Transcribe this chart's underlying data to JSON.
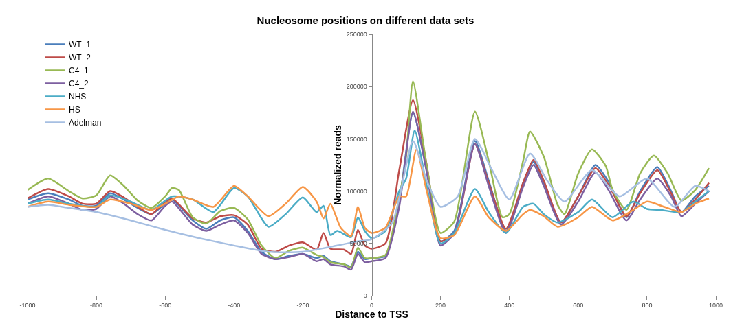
{
  "chart_data": {
    "type": "line",
    "title": "Nucleosome positions on different data sets",
    "xlabel": "Distance to TSS",
    "ylabel": "Normalized reads",
    "xlim": [
      -1000,
      1000
    ],
    "xticks": [
      -1000,
      -800,
      -600,
      -400,
      -200,
      0,
      200,
      400,
      600,
      800,
      1000
    ],
    "ylim": [
      0,
      250000
    ],
    "yticks": [
      0,
      50000,
      100000,
      150000,
      200000,
      250000
    ],
    "legend": "top left",
    "marker": "none",
    "line_style": "solid",
    "series": [
      {
        "name": "WT_1",
        "color": "#4a7ebb",
        "x": [
          -1000,
          -940,
          -880,
          -840,
          -800,
          -760,
          -720,
          -680,
          -640,
          -600,
          -580,
          -520,
          -480,
          -440,
          -400,
          -360,
          -320,
          -280,
          -240,
          -200,
          -160,
          -140,
          -120,
          -80,
          -60,
          -40,
          -20,
          0,
          40,
          80,
          120,
          160,
          200,
          240,
          300,
          340,
          390,
          440,
          470,
          500,
          550,
          600,
          650,
          690,
          740,
          780,
          830,
          870,
          900,
          940,
          980
        ],
        "values": [
          92000,
          98000,
          92000,
          86000,
          86000,
          98000,
          92000,
          84000,
          78000,
          88000,
          92000,
          72000,
          64000,
          72000,
          75000,
          62000,
          42000,
          35000,
          38000,
          40000,
          36000,
          38000,
          33000,
          30000,
          28000,
          42000,
          35000,
          36000,
          38000,
          90000,
          175000,
          120000,
          52000,
          62000,
          148000,
          110000,
          62000,
          108000,
          128000,
          108000,
          70000,
          95000,
          125000,
          108000,
          75000,
          100000,
          123000,
          100000,
          80000,
          95000,
          105000
        ]
      },
      {
        "name": "WT_2",
        "color": "#be4b48",
        "x": [
          -1000,
          -940,
          -880,
          -840,
          -800,
          -760,
          -720,
          -680,
          -640,
          -600,
          -580,
          -520,
          -480,
          -440,
          -400,
          -360,
          -320,
          -280,
          -240,
          -200,
          -160,
          -140,
          -120,
          -80,
          -60,
          -40,
          -20,
          0,
          40,
          80,
          120,
          160,
          200,
          240,
          300,
          340,
          390,
          440,
          470,
          500,
          550,
          600,
          650,
          690,
          740,
          780,
          830,
          870,
          900,
          940,
          980
        ],
        "values": [
          93000,
          102000,
          95000,
          88000,
          88000,
          100000,
          94000,
          85000,
          78000,
          90000,
          93000,
          74000,
          70000,
          76000,
          77000,
          68000,
          45000,
          42000,
          48000,
          51000,
          44000,
          60000,
          45000,
          44000,
          40000,
          63000,
          48000,
          45000,
          50000,
          120000,
          187000,
          125000,
          52000,
          60000,
          145000,
          108000,
          64000,
          108000,
          130000,
          110000,
          70000,
          95000,
          122000,
          105000,
          76000,
          98000,
          120000,
          98000,
          80000,
          92000,
          108000
        ]
      },
      {
        "name": "C4_1",
        "color": "#98b954",
        "x": [
          -1000,
          -940,
          -880,
          -840,
          -800,
          -760,
          -720,
          -680,
          -640,
          -600,
          -580,
          -560,
          -520,
          -480,
          -440,
          -400,
          -360,
          -320,
          -280,
          -240,
          -200,
          -160,
          -140,
          -120,
          -80,
          -60,
          -40,
          -20,
          0,
          40,
          80,
          100,
          120,
          160,
          200,
          240,
          300,
          340,
          380,
          400,
          440,
          460,
          500,
          540,
          560,
          600,
          640,
          680,
          700,
          740,
          780,
          820,
          860,
          900,
          940,
          980
        ],
        "values": [
          101000,
          112000,
          100000,
          93000,
          96000,
          115000,
          105000,
          91000,
          84000,
          95000,
          103000,
          101000,
          75000,
          69000,
          81000,
          84000,
          73000,
          48000,
          36000,
          43000,
          46000,
          39000,
          37000,
          32000,
          30000,
          27000,
          46000,
          36000,
          36000,
          39000,
          94000,
          133000,
          205000,
          124000,
          60000,
          71000,
          176000,
          129000,
          75000,
          78000,
          129000,
          157000,
          133000,
          87000,
          78000,
          117000,
          140000,
          124000,
          101000,
          82000,
          117000,
          134000,
          117000,
          91000,
          101000,
          122000
        ]
      },
      {
        "name": "C4_2",
        "color": "#7d5fa0",
        "x": [
          -1000,
          -940,
          -880,
          -840,
          -800,
          -760,
          -720,
          -680,
          -640,
          -600,
          -580,
          -520,
          -480,
          -440,
          -400,
          -360,
          -320,
          -280,
          -240,
          -200,
          -160,
          -140,
          -120,
          -80,
          -60,
          -40,
          -20,
          0,
          40,
          80,
          120,
          160,
          200,
          240,
          300,
          340,
          390,
          440,
          470,
          500,
          550,
          600,
          650,
          690,
          740,
          780,
          830,
          870,
          900,
          940,
          980
        ],
        "values": [
          88000,
          95000,
          88000,
          82000,
          83000,
          95000,
          88000,
          78000,
          72000,
          86000,
          90000,
          68000,
          62000,
          68000,
          72000,
          60000,
          40000,
          35000,
          37000,
          40000,
          33000,
          35000,
          30000,
          28000,
          25000,
          40000,
          32000,
          33000,
          36000,
          85000,
          176000,
          118000,
          48000,
          60000,
          145000,
          105000,
          60000,
          104000,
          125000,
          105000,
          68000,
          90000,
          118000,
          100000,
          72000,
          92000,
          112000,
          95000,
          76000,
          88000,
          100000
        ]
      },
      {
        "name": "NHS",
        "color": "#4bacc6",
        "x": [
          -1000,
          -940,
          -880,
          -800,
          -760,
          -700,
          -640,
          -580,
          -520,
          -460,
          -400,
          -360,
          -300,
          -250,
          -200,
          -160,
          -140,
          -120,
          -100,
          -60,
          -40,
          -20,
          0,
          40,
          80,
          100,
          125,
          160,
          200,
          240,
          300,
          340,
          390,
          440,
          470,
          500,
          540,
          600,
          640,
          700,
          760,
          800,
          840,
          900,
          940,
          980
        ],
        "values": [
          88000,
          92000,
          88000,
          85000,
          96000,
          90000,
          82000,
          95000,
          92000,
          80000,
          103000,
          95000,
          66000,
          78000,
          94000,
          80000,
          86000,
          58000,
          62000,
          56000,
          75000,
          62000,
          55000,
          62000,
          100000,
          112000,
          158000,
          105000,
          50000,
          60000,
          102000,
          80000,
          60000,
          85000,
          88000,
          78000,
          70000,
          80000,
          92000,
          75000,
          90000,
          83000,
          82000,
          80000,
          90000,
          100000
        ]
      },
      {
        "name": "HS",
        "color": "#f79646",
        "x": [
          -1000,
          -940,
          -880,
          -800,
          -760,
          -700,
          -640,
          -600,
          -560,
          -520,
          -460,
          -400,
          -360,
          -300,
          -250,
          -200,
          -160,
          -140,
          -120,
          -90,
          -60,
          -40,
          -20,
          0,
          40,
          80,
          100,
          130,
          160,
          200,
          240,
          300,
          340,
          390,
          440,
          460,
          500,
          540,
          600,
          640,
          700,
          760,
          800,
          850,
          900,
          940,
          980
        ],
        "values": [
          85000,
          90000,
          87000,
          85000,
          92000,
          88000,
          82000,
          88000,
          95000,
          92000,
          85000,
          105000,
          95000,
          76000,
          88000,
          104000,
          90000,
          74000,
          88000,
          65000,
          57000,
          85000,
          65000,
          60000,
          65000,
          95000,
          95000,
          140000,
          100000,
          55000,
          58000,
          95000,
          75000,
          62000,
          78000,
          82000,
          76000,
          66000,
          75000,
          85000,
          72000,
          82000,
          90000,
          85000,
          80000,
          88000,
          93000
        ]
      },
      {
        "name": "Adelman",
        "color": "#a6bfe2",
        "x": [
          -1000,
          -940,
          -880,
          -800,
          -700,
          -600,
          -500,
          -400,
          -300,
          -200,
          -100,
          -40,
          0,
          60,
          120,
          160,
          200,
          250,
          300,
          350,
          400,
          460,
          510,
          560,
          640,
          720,
          800,
          880,
          940,
          980
        ],
        "values": [
          85000,
          87000,
          84000,
          80000,
          72000,
          63000,
          55000,
          48000,
          42000,
          42000,
          48000,
          52000,
          54000,
          70000,
          148000,
          110000,
          85000,
          95000,
          150000,
          120000,
          92000,
          136000,
          110000,
          90000,
          120000,
          95000,
          112000,
          85000,
          105000,
          100000
        ]
      }
    ]
  }
}
